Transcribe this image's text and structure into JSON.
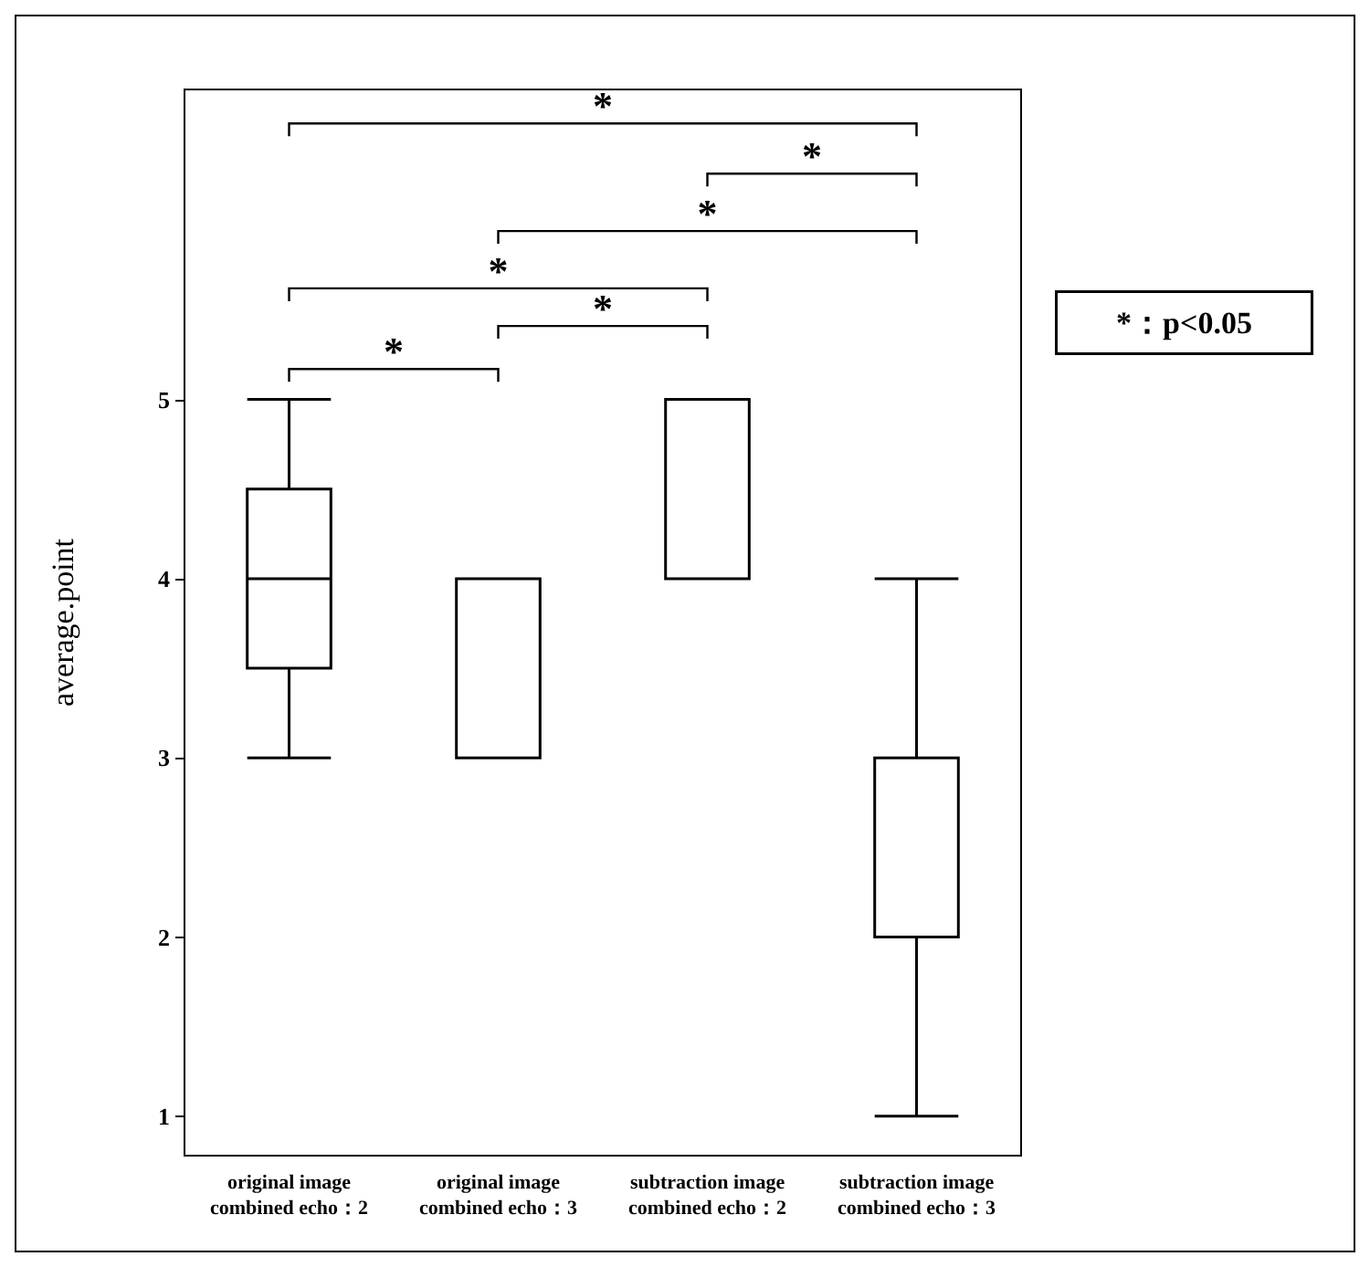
{
  "chart_data": {
    "type": "box",
    "ylabel": "average.point",
    "categories": [
      "original image\ncombined echo：2",
      "original image\ncombined echo：3",
      "subtraction image\ncombined echo：2",
      "subtraction image\ncombined echo：3"
    ],
    "boxes": [
      {
        "low": 3,
        "q1": 3.5,
        "median": 4,
        "q3": 4.5,
        "high": 5
      },
      {
        "low": 3,
        "q1": 3,
        "median": 3,
        "q3": 4,
        "high": 4
      },
      {
        "low": 4,
        "q1": 4,
        "median": 4,
        "q3": 5,
        "high": 5
      },
      {
        "low": 1,
        "q1": 2,
        "median": 2,
        "q3": 3,
        "high": 4
      }
    ],
    "color": "#000000",
    "ylim": [
      0.78,
      6.73
    ],
    "yticks": [
      1,
      2,
      3,
      4,
      5
    ],
    "grid": false,
    "annotations": [
      "*",
      "*",
      "*",
      "*",
      "*",
      "*",
      "*：p<0.05"
    ]
  }
}
